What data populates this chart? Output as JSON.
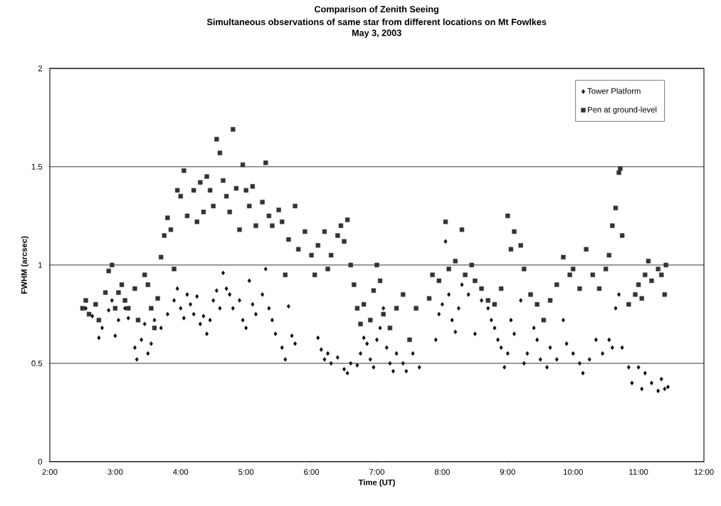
{
  "chart_data": {
    "type": "scatter",
    "title": "Comparison of Zenith Seeing",
    "subtitle": "Simultaneous observations of same star from different locations on Mt Fowlkes",
    "annotations": [
      "May 3, 2003"
    ],
    "xlabel": "Time (UT)",
    "ylabel": "FWHM (arcsec)",
    "xlim": [
      2,
      12
    ],
    "ylim": [
      0,
      2
    ],
    "xticks": [
      {
        "value": 2,
        "label": "2:00"
      },
      {
        "value": 3,
        "label": "3:00"
      },
      {
        "value": 4,
        "label": "4:00"
      },
      {
        "value": 5,
        "label": "5:00"
      },
      {
        "value": 6,
        "label": "6:00"
      },
      {
        "value": 7,
        "label": "7:00"
      },
      {
        "value": 8,
        "label": "8:00"
      },
      {
        "value": 9,
        "label": "9:00"
      },
      {
        "value": 10,
        "label": "10:00"
      },
      {
        "value": 11,
        "label": "11:00"
      },
      {
        "value": 12,
        "label": "12:00"
      }
    ],
    "yticks": [
      0,
      0.5,
      1,
      1.5,
      2
    ],
    "grid": "y",
    "legend": "top right",
    "series": [
      {
        "name": "Tower Platform",
        "color": "#000000",
        "marker": "diamond",
        "x": [
          2.55,
          2.65,
          2.75,
          2.8,
          2.9,
          2.95,
          3.0,
          3.05,
          3.15,
          3.2,
          3.3,
          3.33,
          3.4,
          3.45,
          3.5,
          3.55,
          3.6,
          3.7,
          3.8,
          3.9,
          3.95,
          4.0,
          4.05,
          4.1,
          4.15,
          4.2,
          4.25,
          4.3,
          4.35,
          4.4,
          4.45,
          4.5,
          4.55,
          4.6,
          4.65,
          4.7,
          4.75,
          4.8,
          4.9,
          4.95,
          5.0,
          5.05,
          5.1,
          5.15,
          5.25,
          5.3,
          5.35,
          5.4,
          5.45,
          5.55,
          5.6,
          5.65,
          5.7,
          5.75,
          6.1,
          6.15,
          6.2,
          6.25,
          6.3,
          6.4,
          6.5,
          6.55,
          6.6,
          6.7,
          6.75,
          6.8,
          6.85,
          6.9,
          6.95,
          7.0,
          7.05,
          7.1,
          7.15,
          7.2,
          7.25,
          7.3,
          7.4,
          7.45,
          7.55,
          7.65,
          7.9,
          7.95,
          8.0,
          8.05,
          8.1,
          8.15,
          8.2,
          8.25,
          8.3,
          8.4,
          8.5,
          8.6,
          8.7,
          8.75,
          8.8,
          8.85,
          8.9,
          8.95,
          9.0,
          9.05,
          9.1,
          9.2,
          9.25,
          9.3,
          9.4,
          9.45,
          9.5,
          9.6,
          9.65,
          9.75,
          9.85,
          9.9,
          10.0,
          10.1,
          10.15,
          10.25,
          10.35,
          10.45,
          10.55,
          10.6,
          10.65,
          10.7,
          10.75,
          10.85,
          10.9,
          11.0,
          11.05,
          11.1,
          11.2,
          11.3,
          11.35,
          11.4,
          11.45
        ],
        "values": [
          0.78,
          0.74,
          0.63,
          0.68,
          0.77,
          0.82,
          0.64,
          0.72,
          0.78,
          0.73,
          0.58,
          0.52,
          0.62,
          0.7,
          0.55,
          0.6,
          0.72,
          0.68,
          0.75,
          0.82,
          0.88,
          0.78,
          0.73,
          0.85,
          0.8,
          0.75,
          0.84,
          0.7,
          0.74,
          0.65,
          0.72,
          0.82,
          0.87,
          0.78,
          0.96,
          0.88,
          0.85,
          0.78,
          0.82,
          0.72,
          0.68,
          0.92,
          0.8,
          0.75,
          0.85,
          0.98,
          0.78,
          0.72,
          0.65,
          0.58,
          0.52,
          0.79,
          0.64,
          0.6,
          0.63,
          0.57,
          0.52,
          0.55,
          0.5,
          0.53,
          0.47,
          0.45,
          0.5,
          0.49,
          0.55,
          0.63,
          0.6,
          0.52,
          0.48,
          0.62,
          0.68,
          0.78,
          0.58,
          0.5,
          0.46,
          0.55,
          0.5,
          0.46,
          0.55,
          0.48,
          0.62,
          0.75,
          0.8,
          1.12,
          0.85,
          0.72,
          0.66,
          0.78,
          0.9,
          0.85,
          0.65,
          0.82,
          0.78,
          0.72,
          0.68,
          0.62,
          0.58,
          0.48,
          0.55,
          0.72,
          0.65,
          0.82,
          0.5,
          0.55,
          0.68,
          0.62,
          0.52,
          0.48,
          0.58,
          0.52,
          0.72,
          0.6,
          0.55,
          0.5,
          0.45,
          0.52,
          0.62,
          0.55,
          0.62,
          0.58,
          0.78,
          0.85,
          0.58,
          0.48,
          0.4,
          0.48,
          0.37,
          0.45,
          0.4,
          0.36,
          0.42,
          0.37,
          0.38
        ]
      },
      {
        "name": "Pen at ground-level",
        "color": "#333333",
        "marker": "square",
        "x": [
          2.5,
          2.55,
          2.6,
          2.7,
          2.75,
          2.85,
          2.9,
          2.95,
          3.0,
          3.05,
          3.1,
          3.15,
          3.2,
          3.3,
          3.35,
          3.45,
          3.5,
          3.55,
          3.6,
          3.65,
          3.7,
          3.75,
          3.8,
          3.85,
          3.9,
          3.95,
          4.0,
          4.05,
          4.1,
          4.2,
          4.25,
          4.3,
          4.35,
          4.4,
          4.45,
          4.5,
          4.55,
          4.6,
          4.65,
          4.7,
          4.75,
          4.8,
          4.85,
          4.9,
          4.95,
          5.0,
          5.05,
          5.1,
          5.15,
          5.25,
          5.3,
          5.35,
          5.4,
          5.5,
          5.55,
          5.6,
          5.65,
          5.75,
          5.8,
          5.9,
          6.0,
          6.05,
          6.1,
          6.2,
          6.25,
          6.3,
          6.4,
          6.45,
          6.5,
          6.55,
          6.6,
          6.65,
          6.7,
          6.75,
          6.8,
          6.9,
          6.95,
          7.0,
          7.05,
          7.1,
          7.2,
          7.3,
          7.4,
          7.5,
          7.6,
          7.8,
          7.85,
          7.95,
          8.05,
          8.1,
          8.2,
          8.3,
          8.35,
          8.45,
          8.5,
          8.6,
          8.7,
          8.8,
          8.9,
          9.0,
          9.05,
          9.1,
          9.2,
          9.25,
          9.35,
          9.45,
          9.55,
          9.65,
          9.75,
          9.85,
          9.95,
          10.0,
          10.1,
          10.2,
          10.3,
          10.4,
          10.5,
          10.55,
          10.6,
          10.65,
          10.7,
          10.72,
          10.75,
          10.85,
          10.95,
          11.0,
          11.05,
          11.1,
          11.15,
          11.2,
          11.3,
          11.35,
          11.4,
          11.42
        ],
        "values": [
          0.78,
          0.82,
          0.75,
          0.8,
          0.72,
          0.86,
          0.97,
          1.0,
          0.78,
          0.86,
          0.9,
          0.82,
          0.78,
          0.88,
          0.72,
          0.95,
          0.9,
          0.78,
          0.68,
          0.83,
          1.04,
          1.15,
          1.24,
          1.18,
          0.98,
          1.38,
          1.35,
          1.48,
          1.25,
          1.38,
          1.22,
          1.42,
          1.27,
          1.45,
          1.38,
          1.3,
          1.64,
          1.57,
          1.43,
          1.35,
          1.27,
          1.69,
          1.39,
          1.18,
          1.51,
          1.38,
          1.3,
          1.4,
          1.2,
          1.32,
          1.52,
          1.25,
          1.2,
          1.28,
          1.22,
          0.95,
          1.13,
          1.3,
          1.08,
          1.17,
          1.05,
          0.95,
          1.1,
          1.17,
          0.98,
          1.05,
          1.15,
          1.2,
          1.12,
          1.23,
          1.0,
          0.9,
          0.78,
          0.7,
          0.8,
          0.72,
          0.87,
          1.0,
          0.92,
          0.75,
          0.68,
          0.78,
          0.85,
          0.62,
          0.78,
          0.83,
          0.95,
          0.92,
          1.22,
          0.98,
          1.02,
          1.18,
          0.95,
          1.0,
          0.92,
          0.88,
          0.82,
          0.8,
          0.88,
          1.25,
          1.08,
          1.17,
          1.1,
          0.98,
          0.85,
          0.8,
          0.72,
          0.82,
          0.9,
          1.04,
          0.95,
          0.98,
          0.88,
          1.08,
          0.95,
          0.88,
          0.98,
          1.05,
          1.2,
          1.29,
          1.47,
          1.49,
          1.15,
          0.8,
          0.85,
          0.9,
          0.83,
          0.95,
          1.02,
          0.92,
          0.98,
          0.95,
          0.85,
          1.0
        ]
      }
    ]
  }
}
